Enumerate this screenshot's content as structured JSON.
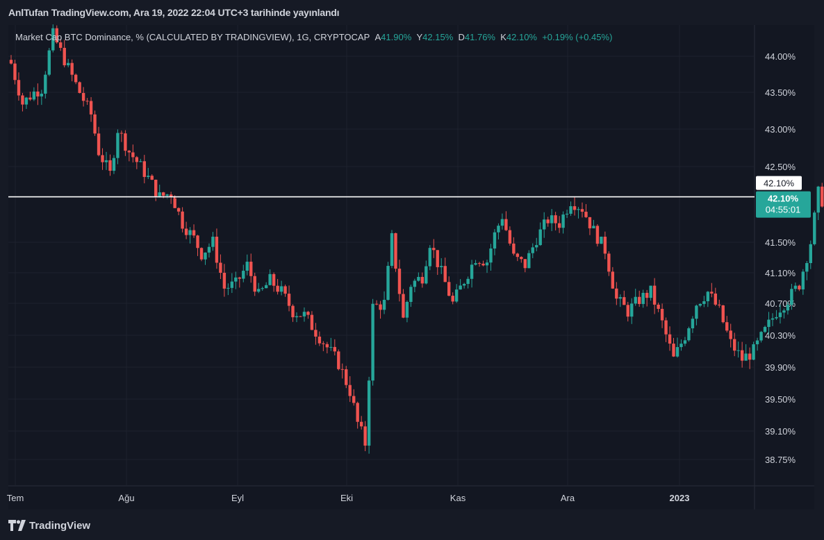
{
  "publish_line": "AnlTufan TradingView.com, Ara 19, 2022 22:04 UTC+3 tarihinde yayınlandı",
  "legend": {
    "symbol": "Market Cap BTC Dominance, % (CALCULATED BY TRADINGVIEW), 1G, CRYPTOCAP",
    "o_label": "A",
    "o_value": "41.90%",
    "h_label": "Y",
    "h_value": "42.15%",
    "l_label": "D",
    "l_value": "41.76%",
    "c_label": "K",
    "c_value": "42.10%",
    "change": "+0.19% (+0.45%)"
  },
  "brand": {
    "name": "TradingView",
    "icon": "tradingview-logo-icon"
  },
  "colors": {
    "up": "#26a69a",
    "down": "#ef5350",
    "background": "#131722",
    "grid": "#1e222d",
    "price_line": "#ffffff"
  },
  "chart_data": {
    "type": "candlestick",
    "title": "Market Cap BTC Dominance, % (CALCULATED BY TRADINGVIEW), 1G, CRYPTOCAP",
    "y_ticks": [
      "44.00%",
      "43.50%",
      "43.00%",
      "42.50%",
      "41.50%",
      "41.10%",
      "40.70%",
      "40.30%",
      "39.90%",
      "39.50%",
      "39.10%",
      "38.75%"
    ],
    "x_ticks": [
      "Tem",
      "Ağu",
      "Eyl",
      "Eki",
      "Kas",
      "Ara",
      "2023"
    ],
    "ylim": [
      38.5,
      44.5
    ],
    "last_price": {
      "value": 42.1,
      "label": "42.10%",
      "countdown": "04:55:01"
    },
    "crosshair_label": "42.10%",
    "horizontal_line": 42.1,
    "close_path": [
      {
        "d": 0,
        "c": 43.9
      },
      {
        "d": 3,
        "c": 43.35
      },
      {
        "d": 6,
        "c": 43.5
      },
      {
        "d": 8,
        "c": 43.55
      },
      {
        "d": 11,
        "c": 44.3
      },
      {
        "d": 14,
        "c": 43.95
      },
      {
        "d": 18,
        "c": 43.5
      },
      {
        "d": 21,
        "c": 43.2
      },
      {
        "d": 23,
        "c": 42.7
      },
      {
        "d": 26,
        "c": 42.4
      },
      {
        "d": 28,
        "c": 43.0
      },
      {
        "d": 31,
        "c": 42.7
      },
      {
        "d": 34,
        "c": 42.5
      },
      {
        "d": 36,
        "c": 42.35
      },
      {
        "d": 39,
        "c": 42.1
      },
      {
        "d": 42,
        "c": 42.15
      },
      {
        "d": 45,
        "c": 41.75
      },
      {
        "d": 48,
        "c": 41.55
      },
      {
        "d": 50,
        "c": 41.35
      },
      {
        "d": 53,
        "c": 41.5
      },
      {
        "d": 56,
        "c": 40.9
      },
      {
        "d": 59,
        "c": 40.95
      },
      {
        "d": 62,
        "c": 41.2
      },
      {
        "d": 65,
        "c": 40.8
      },
      {
        "d": 68,
        "c": 41.0
      },
      {
        "d": 71,
        "c": 40.85
      },
      {
        "d": 74,
        "c": 40.6
      },
      {
        "d": 77,
        "c": 40.55
      },
      {
        "d": 80,
        "c": 40.35
      },
      {
        "d": 83,
        "c": 40.15
      },
      {
        "d": 86,
        "c": 39.95
      },
      {
        "d": 89,
        "c": 39.6
      },
      {
        "d": 91,
        "c": 39.2
      },
      {
        "d": 93,
        "c": 38.95
      },
      {
        "d": 95,
        "c": 40.65
      },
      {
        "d": 98,
        "c": 40.7
      },
      {
        "d": 100,
        "c": 41.55
      },
      {
        "d": 103,
        "c": 40.5
      },
      {
        "d": 105,
        "c": 40.95
      },
      {
        "d": 108,
        "c": 41.05
      },
      {
        "d": 110,
        "c": 41.5
      },
      {
        "d": 113,
        "c": 41.1
      },
      {
        "d": 116,
        "c": 40.7
      },
      {
        "d": 119,
        "c": 41.0
      },
      {
        "d": 122,
        "c": 41.3
      },
      {
        "d": 125,
        "c": 41.25
      },
      {
        "d": 127,
        "c": 41.6
      },
      {
        "d": 129,
        "c": 41.85
      },
      {
        "d": 132,
        "c": 41.3
      },
      {
        "d": 135,
        "c": 41.2
      },
      {
        "d": 138,
        "c": 41.55
      },
      {
        "d": 141,
        "c": 41.8
      },
      {
        "d": 144,
        "c": 41.75
      },
      {
        "d": 147,
        "c": 42.05
      },
      {
        "d": 150,
        "c": 41.95
      },
      {
        "d": 153,
        "c": 41.65
      },
      {
        "d": 156,
        "c": 41.4
      },
      {
        "d": 159,
        "c": 40.75
      },
      {
        "d": 162,
        "c": 40.6
      },
      {
        "d": 165,
        "c": 40.75
      },
      {
        "d": 168,
        "c": 40.85
      },
      {
        "d": 171,
        "c": 40.45
      },
      {
        "d": 174,
        "c": 40.0
      },
      {
        "d": 177,
        "c": 40.3
      },
      {
        "d": 180,
        "c": 40.7
      },
      {
        "d": 183,
        "c": 40.85
      },
      {
        "d": 186,
        "c": 40.6
      },
      {
        "d": 189,
        "c": 40.2
      },
      {
        "d": 192,
        "c": 40.0
      },
      {
        "d": 195,
        "c": 40.1
      },
      {
        "d": 198,
        "c": 40.35
      },
      {
        "d": 201,
        "c": 40.6
      },
      {
        "d": 204,
        "c": 40.75
      },
      {
        "d": 207,
        "c": 40.95
      },
      {
        "d": 210,
        "c": 41.5
      },
      {
        "d": 212,
        "c": 42.15
      },
      {
        "d": 214,
        "c": 41.95
      },
      {
        "d": 216,
        "c": 42.1
      }
    ]
  }
}
